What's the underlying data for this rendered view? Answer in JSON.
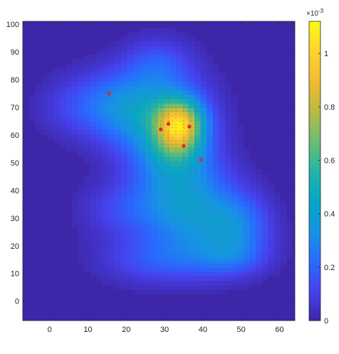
{
  "chart_data": {
    "type": "heatmap",
    "title": "",
    "xlabel": "",
    "ylabel": "",
    "xlim": [
      -7,
      64
    ],
    "ylim": [
      -7,
      101
    ],
    "xticks": [
      0,
      10,
      20,
      30,
      40,
      50,
      60
    ],
    "yticks": [
      0,
      10,
      20,
      30,
      40,
      50,
      60,
      70,
      80,
      90,
      100
    ],
    "colorbar": {
      "range": [
        0,
        0.00112
      ],
      "ticks": [
        0,
        0.2,
        0.4,
        0.6,
        0.8,
        1
      ],
      "tick_labels": [
        "0",
        "0.2",
        "0.4",
        "0.6",
        "0.8",
        "1"
      ],
      "exponent_label": "×10",
      "exponent_power": "-3",
      "colormap": "parula",
      "background_color": "#3e26a8"
    },
    "density_blobs": [
      {
        "x": 34,
        "y": 64,
        "amp": 1.0,
        "sx": 4.2,
        "sy": 6.0
      },
      {
        "x": 30,
        "y": 62,
        "amp": 0.35,
        "sx": 8,
        "sy": 14
      },
      {
        "x": 24,
        "y": 68,
        "amp": 0.3,
        "sx": 10,
        "sy": 9
      },
      {
        "x": 16,
        "y": 72,
        "amp": 0.22,
        "sx": 8,
        "sy": 8
      },
      {
        "x": 28,
        "y": 86,
        "amp": 0.2,
        "sx": 6,
        "sy": 6
      },
      {
        "x": 35,
        "y": 42,
        "amp": 0.33,
        "sx": 8,
        "sy": 10
      },
      {
        "x": 38,
        "y": 28,
        "amp": 0.35,
        "sx": 9,
        "sy": 10
      },
      {
        "x": 49,
        "y": 27,
        "amp": 0.32,
        "sx": 6,
        "sy": 8
      },
      {
        "x": 28,
        "y": 15,
        "amp": 0.22,
        "sx": 10,
        "sy": 6
      },
      {
        "x": 47,
        "y": 16,
        "amp": 0.22,
        "sx": 7,
        "sy": 5
      },
      {
        "x": 33,
        "y": 55,
        "amp": 0.3,
        "sx": 5,
        "sy": 6
      },
      {
        "x": 20,
        "y": 33,
        "amp": 0.18,
        "sx": 8,
        "sy": 7
      },
      {
        "x": 4,
        "y": 70,
        "amp": 0.08,
        "sx": 6,
        "sy": 7
      }
    ],
    "highlight_points": [
      {
        "x": 31,
        "y": 64
      },
      {
        "x": 36.5,
        "y": 63
      },
      {
        "x": 29,
        "y": 62
      },
      {
        "x": 35,
        "y": 56
      },
      {
        "x": 39.5,
        "y": 51
      },
      {
        "x": 15.5,
        "y": 75
      }
    ],
    "point_color": "#d92b2b"
  }
}
